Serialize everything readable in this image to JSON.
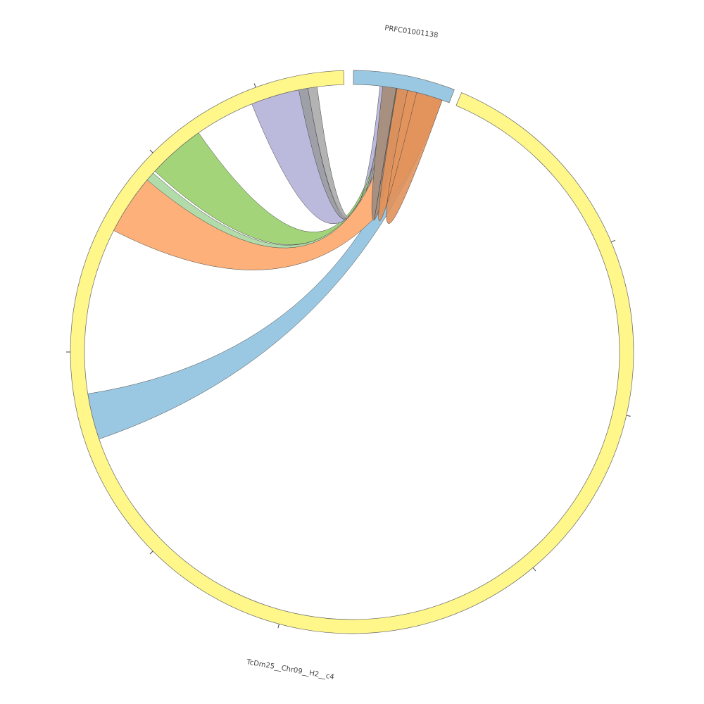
{
  "labels": {
    "top": "PRFC01001138",
    "bottom": "TcDm25__Chr09__H2__c4"
  }
}
